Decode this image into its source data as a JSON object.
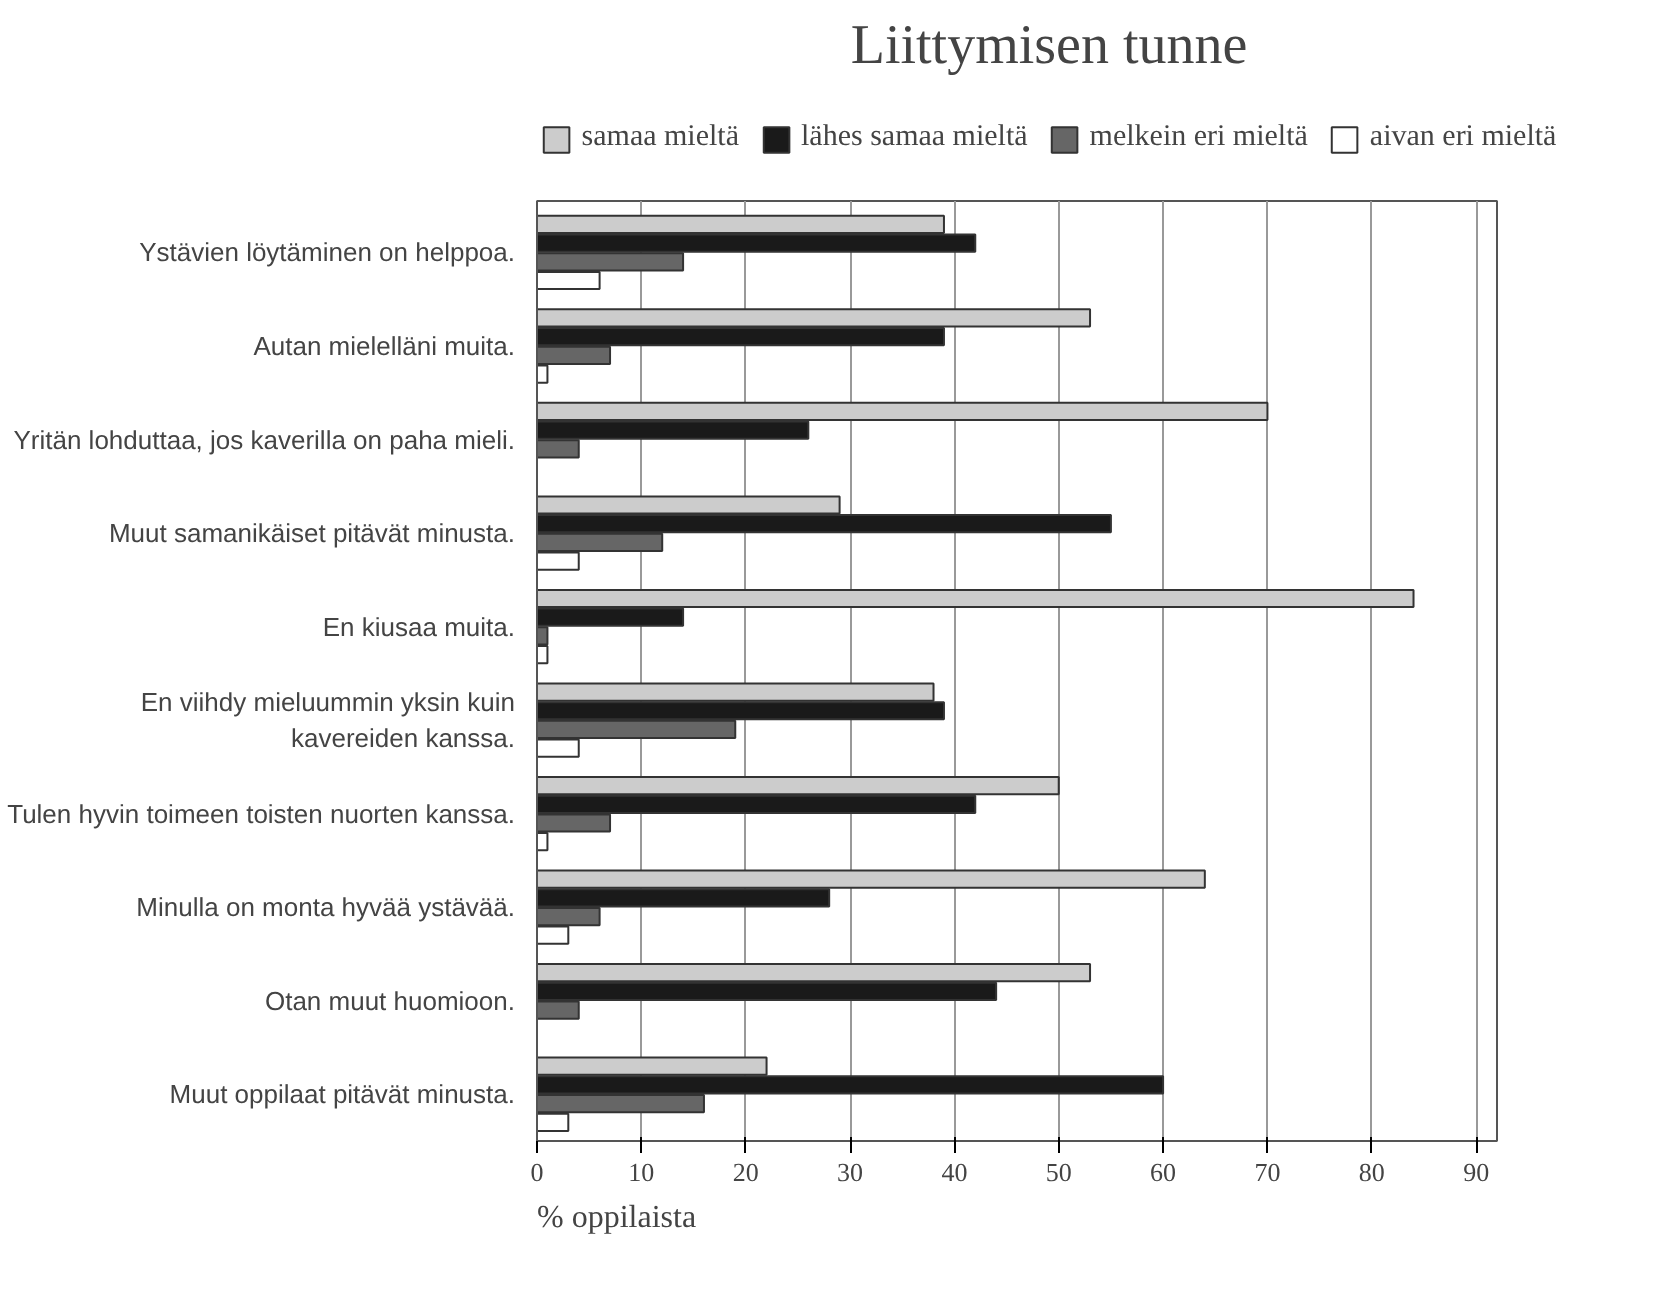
{
  "chart_data": {
    "type": "bar",
    "orientation": "horizontal",
    "title": "Liittymisen tunne",
    "xlabel": "% oppilaista",
    "categories": [
      "Ystävien löytäminen on helppoa.",
      "Autan mielelläni muita.",
      "Yritän lohduttaa, jos kaverilla on paha mieli.",
      "Muut samanikäiset pitävät minusta.",
      "En kiusaa muita.",
      "En viihdy mieluummin yksin kuin\nkavereiden kanssa.",
      "Tulen hyvin toimeen toisten nuorten kanssa.",
      "Minulla on monta hyvää ystävää.",
      "Otan muut huomioon.",
      "Muut oppilaat pitävät minusta."
    ],
    "series": [
      {
        "name": "samaa mieltä",
        "color": "#cccccc",
        "values": [
          39,
          53,
          70,
          29,
          84,
          38,
          50,
          64,
          53,
          22
        ]
      },
      {
        "name": "lähes samaa mieltä",
        "color": "#1a1a1a",
        "values": [
          42,
          39,
          26,
          55,
          14,
          39,
          42,
          28,
          44,
          60
        ]
      },
      {
        "name": "melkein eri mieltä",
        "color": "#666666",
        "values": [
          14,
          7,
          4,
          12,
          1,
          19,
          7,
          6,
          4,
          16
        ]
      },
      {
        "name": "aivan eri mieltä",
        "color": "#ffffff",
        "values": [
          6,
          1,
          0,
          4,
          1,
          4,
          1,
          3,
          0,
          3
        ]
      }
    ],
    "xlim": [
      0,
      92
    ],
    "xticks": [
      0,
      10,
      20,
      30,
      40,
      50,
      60,
      70,
      80,
      90
    ],
    "grid": "x",
    "legend": "top"
  }
}
